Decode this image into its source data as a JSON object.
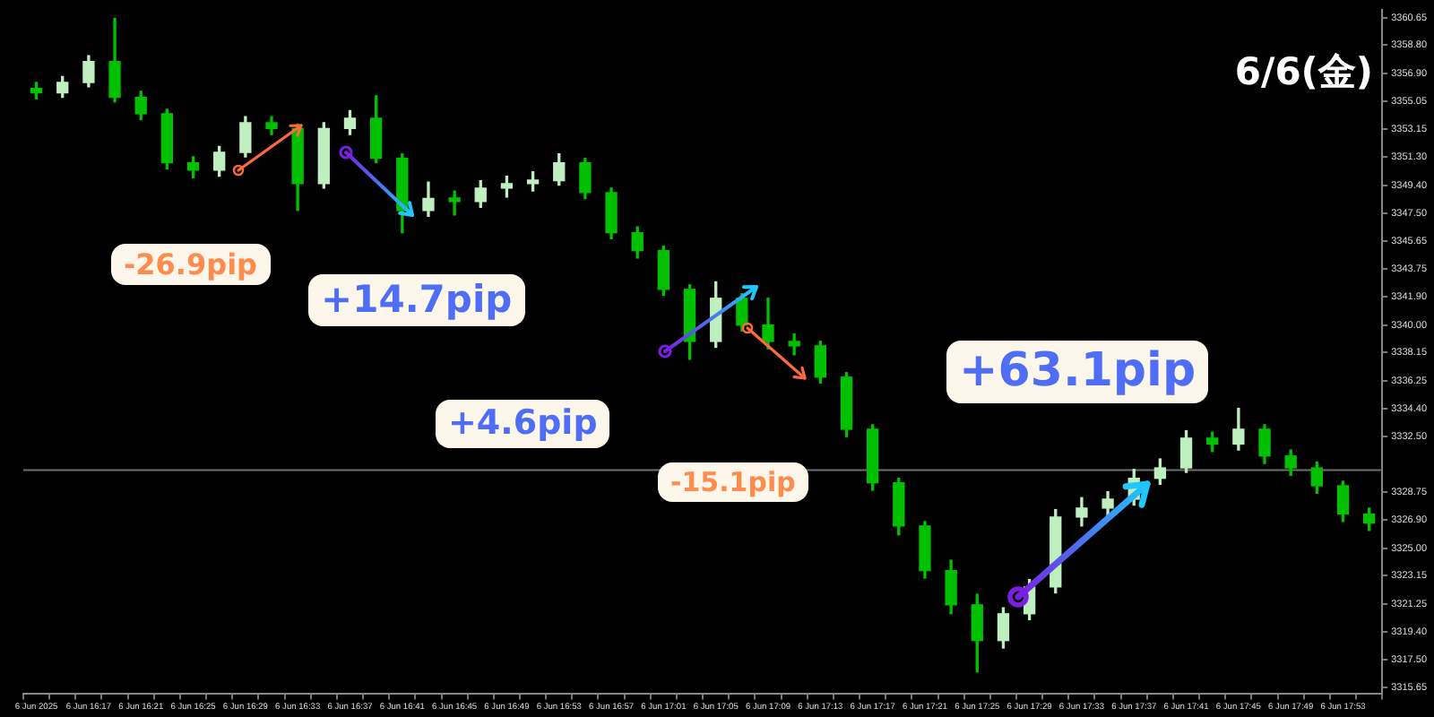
{
  "chart_data": {
    "type": "candlestick",
    "title": "6/6(金)",
    "colors": [
      "#00c000",
      "#bfefbf",
      "#bfefbf",
      "#00c000",
      "#00c000",
      "#00c000",
      "#00c000",
      "#bfefbf",
      "#bfefbf",
      "#00c000",
      "#00c000",
      "#bfefbf",
      "#bfefbf",
      "#00c000",
      "#00c000",
      "#bfefbf",
      "#00c000",
      "#bfefbf",
      "#bfefbf",
      "#bfefbf",
      "#bfefbf",
      "#00c000",
      "#00c000",
      "#00c000",
      "#00c000",
      "#00c000",
      "#bfefbf",
      "#00c000",
      "#00c000",
      "#00c000",
      "#00c000",
      "#00c000",
      "#00c000",
      "#00c000",
      "#00c000",
      "#00c000",
      "#00c000",
      "#bfefbf",
      "#bfefbf",
      "#bfefbf",
      "#bfefbf",
      "#bfefbf",
      "#bfefbf",
      "#bfefbf",
      "#bfefbf",
      "#00c000",
      "#bfefbf",
      "#00c000",
      "#00c000",
      "#00c000",
      "#00c000",
      "#00c000"
    ],
    "categories": [
      "6 Jun 2025",
      null,
      "6 Jun 16:17",
      null,
      "6 Jun 16:21",
      null,
      "6 Jun 16:25",
      null,
      "6 Jun 16:29",
      null,
      "6 Jun 16:33",
      null,
      "6 Jun 16:37",
      null,
      "6 Jun 16:41",
      null,
      "6 Jun 16:45",
      null,
      "6 Jun 16:49",
      null,
      "6 Jun 16:53",
      null,
      "6 Jun 16:57",
      null,
      "6 Jun 17:01",
      null,
      "6 Jun 17:05",
      null,
      "6 Jun 17:09",
      null,
      "6 Jun 17:13",
      null,
      "6 Jun 17:17",
      null,
      "6 Jun 17:21",
      null,
      "6 Jun 17:25",
      null,
      "6 Jun 17:29",
      null,
      "6 Jun 17:33",
      null,
      "6 Jun 17:37",
      null,
      "6 Jun 17:41",
      null,
      "6 Jun 17:45",
      null,
      "6 Jun 17:49",
      null,
      "6 Jun 17:53",
      null
    ],
    "ohlc": [
      [
        3355.9,
        3356.3,
        3355.2,
        3355.6
      ],
      [
        3355.6,
        3356.7,
        3355.3,
        3356.3
      ],
      [
        3356.3,
        3358.1,
        3356.0,
        3357.7
      ],
      [
        3357.7,
        3360.6,
        3355.0,
        3355.3
      ],
      [
        3355.3,
        3355.7,
        3353.8,
        3354.2
      ],
      [
        3354.2,
        3354.5,
        3350.5,
        3350.9
      ],
      [
        3350.9,
        3351.3,
        3349.9,
        3350.4
      ],
      [
        3350.4,
        3352.0,
        3350.0,
        3351.6
      ],
      [
        3351.6,
        3354.0,
        3351.3,
        3353.6
      ],
      [
        3353.6,
        3354.0,
        3352.8,
        3353.2
      ],
      [
        3353.2,
        3353.5,
        3347.7,
        3349.5
      ],
      [
        3349.5,
        3353.6,
        3349.2,
        3353.2
      ],
      [
        3353.2,
        3354.4,
        3352.8,
        3353.9
      ],
      [
        3353.9,
        3355.4,
        3350.9,
        3351.2
      ],
      [
        3351.2,
        3351.5,
        3346.2,
        3347.7
      ],
      [
        3347.7,
        3349.6,
        3347.3,
        3348.5
      ],
      [
        3348.5,
        3349.0,
        3347.4,
        3348.3
      ],
      [
        3348.3,
        3349.7,
        3347.9,
        3349.2
      ],
      [
        3349.2,
        3350.0,
        3348.6,
        3349.5
      ],
      [
        3349.5,
        3350.3,
        3349.0,
        3349.7
      ],
      [
        3349.7,
        3351.5,
        3349.4,
        3350.9
      ],
      [
        3350.9,
        3351.2,
        3348.5,
        3348.9
      ],
      [
        3348.9,
        3349.2,
        3345.8,
        3346.2
      ],
      [
        3346.2,
        3346.6,
        3344.5,
        3345.0
      ],
      [
        3345.0,
        3345.3,
        3342.0,
        3342.4
      ],
      [
        3342.4,
        3342.7,
        3337.7,
        3338.9
      ],
      [
        3338.9,
        3342.9,
        3338.5,
        3341.8
      ],
      [
        3341.8,
        3342.1,
        3339.6,
        3340.0
      ],
      [
        3340.0,
        3341.8,
        3338.4,
        3338.9
      ],
      [
        3338.9,
        3339.4,
        3338.0,
        3338.6
      ],
      [
        3338.6,
        3338.9,
        3336.1,
        3336.5
      ],
      [
        3336.5,
        3336.8,
        3332.5,
        3333.0
      ],
      [
        3333.0,
        3333.3,
        3328.9,
        3329.4
      ],
      [
        3329.4,
        3329.7,
        3325.9,
        3326.5
      ],
      [
        3326.5,
        3326.8,
        3323.0,
        3323.5
      ],
      [
        3323.5,
        3324.2,
        3320.6,
        3321.2
      ],
      [
        3321.2,
        3321.9,
        3316.7,
        3318.8
      ],
      [
        3318.8,
        3321.0,
        3318.3,
        3320.6
      ],
      [
        3320.6,
        3322.9,
        3320.2,
        3322.4
      ],
      [
        3322.4,
        3327.6,
        3322.0,
        3327.1
      ],
      [
        3327.1,
        3328.4,
        3326.5,
        3327.7
      ],
      [
        3327.7,
        3328.8,
        3327.2,
        3328.3
      ],
      [
        3328.3,
        3330.3,
        3327.9,
        3329.7
      ],
      [
        3329.7,
        3331.0,
        3329.3,
        3330.4
      ],
      [
        3330.4,
        3332.9,
        3330.1,
        3332.4
      ],
      [
        3332.4,
        3332.8,
        3331.5,
        3332.0
      ],
      [
        3332.0,
        3334.4,
        3331.6,
        3333.0
      ],
      [
        3333.0,
        3333.3,
        3330.7,
        3331.2
      ],
      [
        3331.2,
        3331.6,
        3329.9,
        3330.4
      ],
      [
        3330.4,
        3330.8,
        3328.7,
        3329.2
      ],
      [
        3329.2,
        3329.5,
        3326.8,
        3327.3
      ],
      [
        3327.3,
        3327.7,
        3326.2,
        3326.7
      ]
    ],
    "ylim": [
      3315.2,
      3361.2
    ],
    "yticks": [
      3360.65,
      {
        "value": 3358.8,
        "label": "3358.80"
      },
      {
        "value": 3356.9,
        "label": "3356.90"
      },
      3355.05,
      3353.15,
      {
        "value": 3351.3,
        "label": "3351.30"
      },
      {
        "value": 3349.4,
        "label": "3349.40"
      },
      {
        "value": 3347.5,
        "label": "3347.50"
      },
      3345.65,
      3343.75,
      {
        "value": 3341.9,
        "label": "3341.90"
      },
      {
        "value": 3340,
        "label": "3340.00"
      },
      3338.15,
      3336.25,
      {
        "value": 3334.4,
        "label": "3334.40"
      },
      {
        "value": 3332.5,
        "label": "3332.50"
      },
      3328.75,
      {
        "value": 3326.9,
        "label": "3326.90"
      },
      {
        "value": 3325,
        "label": "3325.00"
      },
      3323.15,
      3321.25,
      {
        "value": 3319.4,
        "label": "3319.40"
      },
      {
        "value": 3317.5,
        "label": "3317.50"
      },
      3315.65
    ],
    "ref_lines": [
      {
        "axis": "y",
        "value": 3330.26,
        "color": "#707070"
      }
    ],
    "annotations": [
      "-26.9pip",
      "+14.7pip",
      "+4.6pip",
      "-15.1pip",
      "+63.1pip"
    ]
  }
}
